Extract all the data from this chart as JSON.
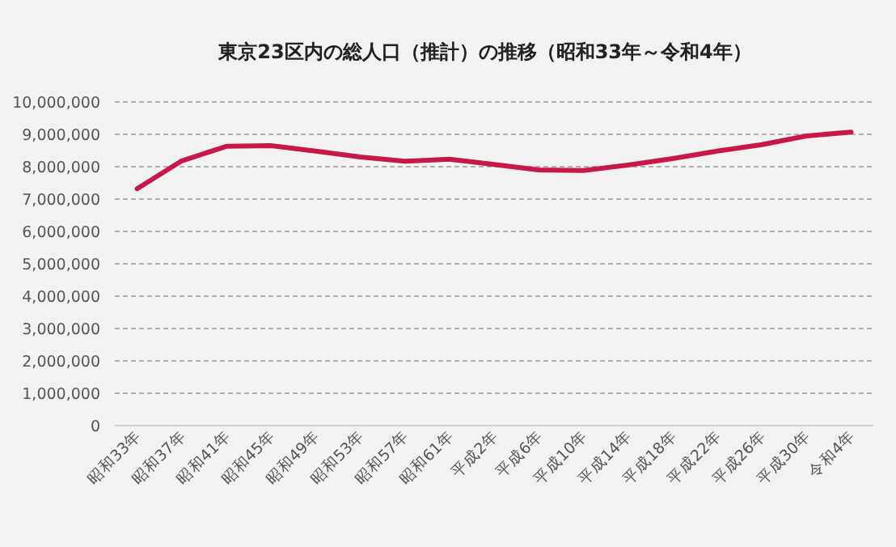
{
  "chart_data": {
    "type": "line",
    "title": "東京23区内の総人口（推計）の推移（昭和33年～令和4年）",
    "categories": [
      "昭和33年",
      "昭和37年",
      "昭和41年",
      "昭和45年",
      "昭和49年",
      "昭和53年",
      "昭和57年",
      "昭和61年",
      "平成2年",
      "平成6年",
      "平成10年",
      "平成14年",
      "平成18年",
      "平成22年",
      "平成26年",
      "平成30年",
      "令和4年"
    ],
    "series": [
      {
        "color": "#c8184a",
        "values": [
          7320000,
          8180000,
          8630000,
          8650000,
          8480000,
          8300000,
          8170000,
          8230000,
          8070000,
          7900000,
          7880000,
          8050000,
          8250000,
          8480000,
          8680000,
          8950000,
          9070000
        ]
      }
    ],
    "ylim": [
      0,
      10000000
    ],
    "yticks": [
      {
        "value": 0,
        "label": "0"
      },
      {
        "value": 1000000,
        "label": "1,000,000"
      },
      {
        "value": 2000000,
        "label": "2,000,000"
      },
      {
        "value": 3000000,
        "label": "3,000,000"
      },
      {
        "value": 4000000,
        "label": "4,000,000"
      },
      {
        "value": 5000000,
        "label": "5,000,000"
      },
      {
        "value": 6000000,
        "label": "6,000,000"
      },
      {
        "value": 7000000,
        "label": "7,000,000"
      },
      {
        "value": 8000000,
        "label": "8,000,000"
      },
      {
        "value": 9000000,
        "label": "9,000,000"
      },
      {
        "value": 10000000,
        "label": "10,000,000"
      }
    ],
    "grid": "y",
    "marker": "none",
    "line_style": "solid"
  }
}
